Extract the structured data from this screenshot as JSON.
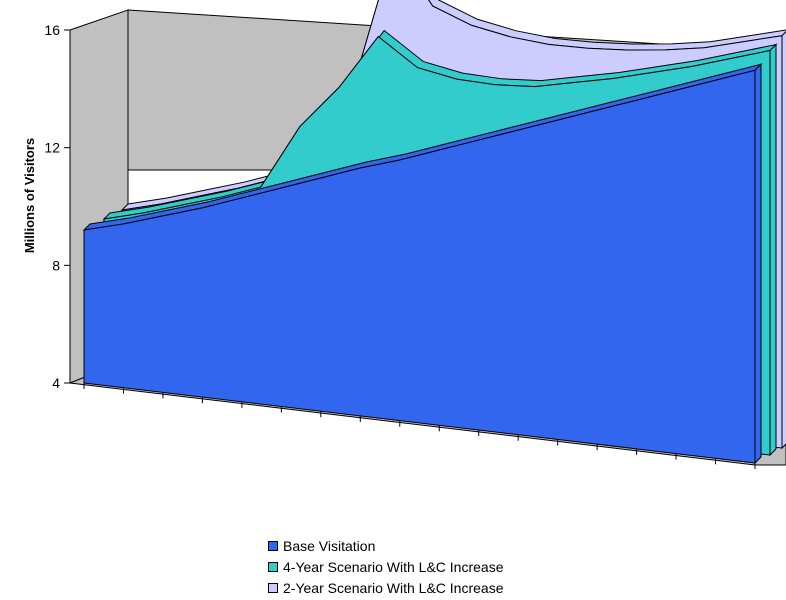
{
  "chart_data": {
    "type": "area",
    "ylabel": "Millions of Visitors",
    "ylim": [
      4,
      16
    ],
    "yticks": [
      "4",
      "8",
      "12",
      "16"
    ],
    "x_count": 18,
    "series": [
      {
        "name": "Base Visitation",
        "color": "#3366ee",
        "values": [
          9.6,
          9.65,
          9.75,
          9.85,
          10.0,
          10.15,
          10.3,
          10.45,
          10.55,
          10.7,
          10.85,
          11.0,
          11.15,
          11.3,
          11.45,
          11.6,
          11.75,
          11.9
        ]
      },
      {
        "name": "4-Year Scenario With L&C Increase",
        "color": "#33cccc",
        "values": [
          9.75,
          9.8,
          9.9,
          10.0,
          10.15,
          11.6,
          12.5,
          13.7,
          12.8,
          12.4,
          12.15,
          12.0,
          12.0,
          12.0,
          12.05,
          12.1,
          12.2,
          12.3
        ]
      },
      {
        "name": "2-Year Scenario With L&C Increase",
        "color": "#ccccff",
        "values": [
          9.9,
          9.95,
          10.05,
          10.15,
          10.3,
          11.7,
          12.6,
          15.9,
          14.3,
          13.7,
          13.3,
          13.0,
          12.8,
          12.65,
          12.55,
          12.5,
          12.55,
          12.6
        ]
      }
    ],
    "legend_position": "bottom",
    "grid": false
  },
  "legend": {
    "item1": "Base Visitation",
    "item2": "4-Year Scenario With L&C Increase",
    "item3": "2-Year Scenario With L&C Increase"
  }
}
